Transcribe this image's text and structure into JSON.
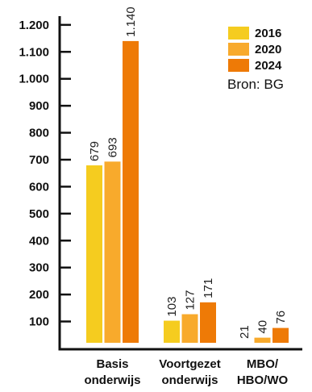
{
  "chart_data": {
    "type": "bar",
    "categories": [
      [
        "Basis",
        "onderwijs"
      ],
      [
        "Voortgezet",
        "onderwijs"
      ],
      [
        "MBO/",
        "HBO/WO"
      ]
    ],
    "series": [
      {
        "name": "2016",
        "color": "#f5cc1f",
        "values": [
          679,
          103,
          21
        ],
        "labels": [
          "679",
          "103",
          "21"
        ]
      },
      {
        "name": "2020",
        "color": "#f8aa2c",
        "values": [
          693,
          127,
          40
        ],
        "labels": [
          "693",
          "127",
          "40"
        ]
      },
      {
        "name": "2024",
        "color": "#ee7a06",
        "values": [
          1140,
          171,
          76
        ],
        "labels": [
          "1.140",
          "171",
          "76"
        ]
      }
    ],
    "yticks": [
      {
        "value": 100,
        "label": "100"
      },
      {
        "value": 200,
        "label": "200"
      },
      {
        "value": 300,
        "label": "300"
      },
      {
        "value": 400,
        "label": "400"
      },
      {
        "value": 500,
        "label": "500"
      },
      {
        "value": 600,
        "label": "600"
      },
      {
        "value": 700,
        "label": "700"
      },
      {
        "value": 800,
        "label": "800"
      },
      {
        "value": 900,
        "label": "900"
      },
      {
        "value": 1000,
        "label": "1.000"
      },
      {
        "value": 1100,
        "label": "1.100"
      },
      {
        "value": 1200,
        "label": "1.200"
      }
    ],
    "ylim": [
      0,
      1200
    ],
    "source": "Bron: BG",
    "legend_position": "top-right",
    "grid": false
  }
}
